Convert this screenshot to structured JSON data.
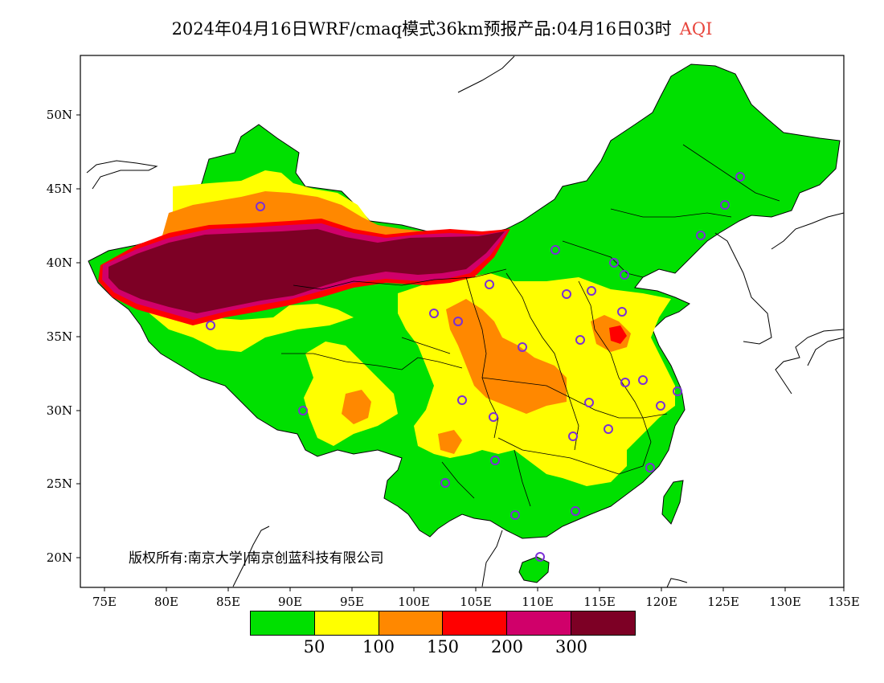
{
  "title": {
    "main": "2024年04月16日WRF/cmaq模式36km预报产品:04月16日03时",
    "variable": "AQI"
  },
  "axes": {
    "x_ticks": [
      "75E",
      "80E",
      "85E",
      "90E",
      "95E",
      "100E",
      "105E",
      "110E",
      "115E",
      "120E",
      "125E",
      "130E",
      "135E"
    ],
    "y_ticks": [
      "50N",
      "45N",
      "40N",
      "35N",
      "30N",
      "25N",
      "20N"
    ]
  },
  "legend": {
    "colors": [
      "#00e000",
      "#ffff00",
      "#ff8800",
      "#ff0000",
      "#d0006a",
      "#7d0025"
    ],
    "labels": [
      "50",
      "100",
      "150",
      "200",
      "300"
    ]
  },
  "copyright": "版权所有:南京大学|南京创蓝科技有限公司",
  "colors": {
    "good": "#00e000",
    "moderate": "#ffff00",
    "sensitive": "#ff8800",
    "unhealthy": "#ff0000",
    "very_unhealthy": "#d0006a",
    "hazardous": "#7d0025",
    "station_marker": "#7b2fd6"
  }
}
